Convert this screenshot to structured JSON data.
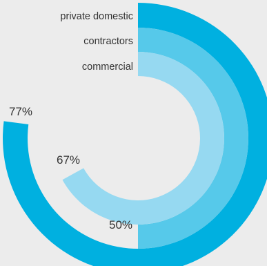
{
  "chart_data": {
    "type": "radial-bar",
    "series": [
      {
        "name": "private domestic",
        "value": 77,
        "label": "77%",
        "color": "#00b0e0"
      },
      {
        "name": "contractors",
        "value": 50,
        "label": "50%",
        "color": "#56c9ea"
      },
      {
        "name": "commercial",
        "value": 67,
        "label": "67%",
        "color": "#96d9f1"
      }
    ],
    "max": 100,
    "background": "#ececec"
  }
}
